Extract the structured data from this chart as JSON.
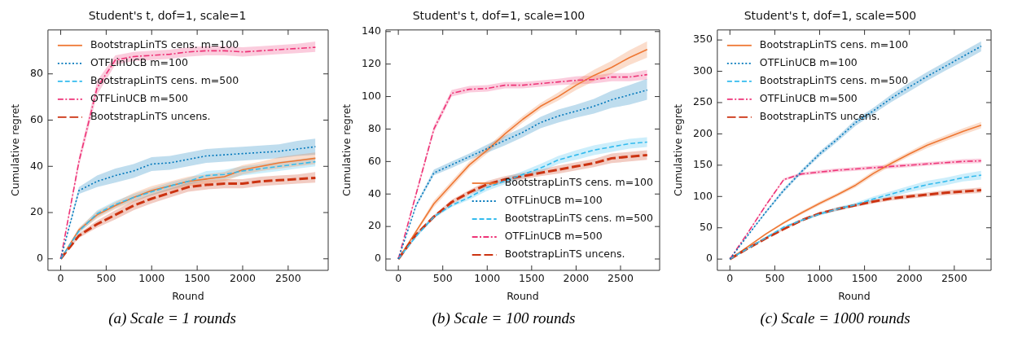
{
  "chart_data": [
    {
      "type": "line",
      "title": "Student's t, dof=1, scale=1",
      "xlabel": "Round",
      "ylabel": "Cumulative regret",
      "x": [
        0,
        200,
        400,
        600,
        800,
        1000,
        1200,
        1400,
        1600,
        1800,
        2000,
        2200,
        2400,
        2600,
        2800
      ],
      "xlim": [
        -140,
        2940
      ],
      "xticks": [
        0,
        500,
        1000,
        1500,
        2000,
        2500
      ],
      "ylim": [
        -5,
        99
      ],
      "yticks": [
        0,
        20,
        40,
        60,
        80
      ],
      "legend": "top left",
      "annotations": [
        "(a) Scale = 1 rounds"
      ],
      "series": [
        {
          "name": "BootstrapLinTS cens. m=100",
          "color": "#ee7733",
          "line_style": "solid",
          "values": [
            0,
            12.5,
            19,
            23,
            26.5,
            29.5,
            31.5,
            33.5,
            34.5,
            35.5,
            38.5,
            40,
            41.5,
            42.5,
            43.5
          ],
          "lower": [
            0,
            11.5,
            17.5,
            21.5,
            24.5,
            27.5,
            29.5,
            31.5,
            32.5,
            33.5,
            36.5,
            38,
            39,
            40,
            41
          ],
          "upper": [
            0,
            13.5,
            20.5,
            24.5,
            28.5,
            31.5,
            33.5,
            35.5,
            36.5,
            37.5,
            40.5,
            42,
            44,
            45,
            46
          ]
        },
        {
          "name": "OTFLinUCB m=100",
          "color": "#0077bb",
          "line_style": "dotted",
          "values": [
            0,
            29.5,
            33.5,
            36,
            38,
            41,
            41.5,
            43,
            44.5,
            45,
            45.5,
            46,
            46.5,
            47.5,
            48.5
          ],
          "lower": [
            0,
            28,
            31,
            33,
            35,
            38,
            38.5,
            40,
            41.5,
            42,
            42.5,
            43,
            43.5,
            44.5,
            45
          ],
          "upper": [
            0,
            31,
            36,
            39,
            41,
            44,
            44.5,
            46,
            47.5,
            48,
            48.5,
            49,
            49.5,
            51,
            52
          ]
        },
        {
          "name": "BootstrapLinTS cens. m=500",
          "color": "#33bbee",
          "line_style": "dashed",
          "values": [
            0,
            12,
            19.5,
            23.5,
            26.5,
            29,
            31.5,
            33.5,
            36,
            36.5,
            38,
            39,
            40,
            41,
            42
          ],
          "lower": [
            0,
            11,
            18,
            22,
            25,
            27.5,
            30,
            32,
            34,
            34.5,
            36,
            37,
            38,
            39,
            40
          ],
          "upper": [
            0,
            13,
            21,
            25,
            28,
            30.5,
            33,
            35,
            38,
            38.5,
            40,
            41,
            42,
            43,
            44
          ]
        },
        {
          "name": "OTFLinUCB m=500",
          "color": "#ee3377",
          "line_style": "dashdot",
          "values": [
            0,
            42,
            74,
            86,
            87.5,
            88,
            88.5,
            89.5,
            90,
            90,
            89.5,
            90,
            90.5,
            91,
            91.5
          ],
          "lower": [
            0,
            40,
            71,
            84,
            85.5,
            86,
            86.5,
            87.5,
            88,
            88,
            87.5,
            88,
            88.5,
            89,
            89.5
          ],
          "upper": [
            0,
            44,
            77,
            88,
            89.5,
            90,
            90.5,
            91.5,
            92,
            92,
            91.5,
            92,
            92.5,
            93,
            94
          ]
        },
        {
          "name": "BootstrapLinTS uncens.",
          "color": "#cc3311",
          "line_style": "longdash",
          "values": [
            0,
            10,
            15,
            19,
            23,
            26,
            28.5,
            31,
            32,
            32.5,
            32.5,
            33.5,
            34,
            34.5,
            35
          ],
          "lower": [
            0,
            9,
            13.5,
            17,
            21,
            24,
            26.5,
            29,
            30,
            30.5,
            30.5,
            31.5,
            32,
            32.5,
            33
          ],
          "upper": [
            0,
            11,
            16.5,
            21,
            25,
            28,
            30.5,
            33,
            34,
            34.5,
            34.5,
            35.5,
            36,
            36.5,
            37.5
          ]
        }
      ]
    },
    {
      "type": "line",
      "title": "Student's t, dof=1, scale=100",
      "xlabel": "Round",
      "ylabel": "Cumulative regret",
      "x": [
        0,
        200,
        400,
        600,
        800,
        1000,
        1200,
        1400,
        1600,
        1800,
        2000,
        2200,
        2400,
        2600,
        2800
      ],
      "xlim": [
        -140,
        2940
      ],
      "xticks": [
        0,
        500,
        1000,
        1500,
        2000,
        2500
      ],
      "ylim": [
        -7,
        141
      ],
      "yticks": [
        0,
        20,
        40,
        60,
        80,
        100,
        120,
        140
      ],
      "legend": "bottom right",
      "annotations": [
        "(b) Scale = 100 rounds"
      ],
      "series": [
        {
          "name": "BootstrapLinTS cens. m=100",
          "color": "#ee7733",
          "line_style": "solid",
          "values": [
            0,
            17,
            34,
            46,
            58,
            67,
            77,
            86,
            94,
            100,
            107,
            113,
            118,
            124,
            129
          ],
          "lower": [
            0,
            16,
            32,
            44,
            56,
            65,
            75,
            84,
            92,
            97.5,
            104,
            109.5,
            114,
            119.5,
            124
          ],
          "upper": [
            0,
            18,
            36,
            48,
            60,
            69,
            79,
            88,
            96,
            102.5,
            110,
            116.5,
            122,
            128.5,
            134
          ]
        },
        {
          "name": "OTFLinUCB m=100",
          "color": "#0077bb",
          "line_style": "dotted",
          "values": [
            0,
            33,
            53,
            58,
            63,
            68,
            73,
            78,
            84,
            88,
            91,
            94,
            98,
            101,
            104
          ],
          "lower": [
            0,
            32,
            51.5,
            56,
            61,
            65.5,
            70,
            75,
            80.5,
            84,
            87,
            89.5,
            93,
            95,
            98
          ],
          "upper": [
            0,
            34,
            55,
            60,
            65,
            70.5,
            76,
            81,
            87.5,
            92,
            95,
            98.5,
            103.5,
            107,
            111
          ]
        },
        {
          "name": "BootstrapLinTS cens. m=500",
          "color": "#33bbee",
          "line_style": "dashed",
          "values": [
            0,
            14,
            26,
            33,
            38,
            44,
            48,
            52,
            56,
            61,
            64,
            67,
            69,
            71,
            72
          ],
          "lower": [
            0,
            13,
            25,
            32,
            36.5,
            42,
            46,
            50,
            53.5,
            58.5,
            61,
            64,
            66,
            68,
            69
          ],
          "upper": [
            0,
            15,
            27,
            34,
            39.5,
            46,
            50,
            54,
            58.5,
            63.5,
            67,
            70,
            72,
            74,
            75
          ]
        },
        {
          "name": "OTFLinUCB m=500",
          "color": "#ee3377",
          "line_style": "dashdot",
          "values": [
            0,
            40,
            80,
            102,
            104.5,
            105,
            107,
            107,
            108,
            109,
            110,
            110.5,
            112,
            112,
            113.5
          ],
          "lower": [
            0,
            38.5,
            78,
            100,
            102.5,
            103,
            105,
            105,
            106,
            107,
            107.5,
            108,
            109.5,
            109.5,
            110.5
          ],
          "upper": [
            0,
            41.5,
            82,
            104,
            106.5,
            107,
            109,
            109,
            110,
            111,
            112.5,
            113,
            114.5,
            114.5,
            116.5
          ]
        },
        {
          "name": "BootstrapLinTS uncens.",
          "color": "#cc3311",
          "line_style": "longdash",
          "values": [
            0,
            15,
            26,
            35,
            41,
            46,
            49,
            51,
            53,
            55,
            57,
            59,
            62,
            63,
            64
          ],
          "lower": [
            0,
            14,
            25,
            33.5,
            39.5,
            44,
            47,
            49,
            51,
            52.5,
            54.5,
            56.5,
            59,
            60,
            61
          ],
          "upper": [
            0,
            16,
            27,
            36.5,
            42.5,
            48,
            51,
            53,
            55,
            57.5,
            59.5,
            61.5,
            65,
            66,
            67
          ]
        }
      ]
    },
    {
      "type": "line",
      "title": "Student's t, dof=1, scale=500",
      "xlabel": "Round",
      "ylabel": "Cumulative regret",
      "x": [
        0,
        200,
        400,
        600,
        800,
        1000,
        1200,
        1400,
        1600,
        1800,
        2000,
        2200,
        2400,
        2600,
        2800
      ],
      "xlim": [
        -140,
        2910
      ],
      "xticks": [
        0,
        500,
        1000,
        1500,
        2000,
        2500
      ],
      "ylim": [
        -18,
        366
      ],
      "yticks": [
        0,
        50,
        100,
        150,
        200,
        250,
        300,
        350
      ],
      "legend": "top left",
      "annotations": [
        "(c) Scale = 1000 rounds"
      ],
      "series": [
        {
          "name": "BootstrapLinTS cens. m=100",
          "color": "#ee7733",
          "line_style": "solid",
          "values": [
            0,
            20,
            40,
            58,
            74,
            89,
            103,
            118,
            137,
            153,
            168,
            182,
            193,
            204,
            214
          ],
          "lower": [
            0,
            19,
            38.5,
            56,
            71.5,
            86,
            100,
            114.5,
            133,
            149,
            164,
            177.5,
            188.5,
            199,
            209
          ],
          "upper": [
            0,
            21,
            41.5,
            60,
            76.5,
            92,
            106,
            121.5,
            141,
            157,
            172,
            186.5,
            197.5,
            209,
            219
          ]
        },
        {
          "name": "OTFLinUCB m=100",
          "color": "#0077bb",
          "line_style": "dotted",
          "values": [
            0,
            38,
            75,
            110,
            140,
            168,
            192,
            218,
            237,
            257,
            275,
            292,
            308,
            324,
            340
          ],
          "lower": [
            0,
            37,
            73,
            107,
            137,
            164,
            188,
            213,
            232,
            251,
            268,
            285,
            301,
            316,
            332
          ],
          "upper": [
            0,
            39,
            77,
            113,
            143,
            172,
            196,
            223,
            242,
            263,
            282,
            299,
            315,
            332,
            348
          ]
        },
        {
          "name": "BootstrapLinTS cens. m=500",
          "color": "#33bbee",
          "line_style": "dashed",
          "values": [
            0,
            17,
            34,
            51,
            62,
            72,
            80,
            87,
            96,
            104,
            112,
            119,
            124,
            130,
            134
          ],
          "lower": [
            0,
            16,
            32.5,
            49,
            60,
            69.5,
            77,
            84,
            92,
            99.5,
            107,
            113,
            118,
            124,
            127
          ],
          "upper": [
            0,
            18,
            35.5,
            53,
            64,
            74.5,
            83,
            90,
            100,
            108.5,
            117,
            125,
            130,
            136,
            141
          ]
        },
        {
          "name": "OTFLinUCB m=500",
          "color": "#ee3377",
          "line_style": "dashdot",
          "values": [
            0,
            42,
            86,
            127,
            136,
            139,
            142,
            144,
            146,
            148,
            150,
            152,
            154,
            156,
            157
          ],
          "lower": [
            0,
            41,
            84,
            125,
            133.5,
            136,
            139,
            141,
            143,
            145,
            147,
            149,
            151,
            152.5,
            153.5
          ],
          "upper": [
            0,
            43,
            88,
            129,
            138.5,
            142,
            145,
            147,
            149,
            151,
            153,
            155,
            157,
            159.5,
            160.5
          ]
        },
        {
          "name": "BootstrapLinTS uncens.",
          "color": "#cc3311",
          "line_style": "longdash",
          "values": [
            0,
            17,
            33,
            48,
            62,
            73,
            80,
            86,
            92,
            97,
            100,
            103,
            106,
            108,
            110
          ],
          "lower": [
            0,
            16,
            32,
            46.5,
            60,
            71,
            77.5,
            83.5,
            89,
            93.5,
            96.5,
            99.5,
            102,
            104,
            105.5
          ],
          "upper": [
            0,
            18,
            34,
            49.5,
            64,
            75,
            82.5,
            88.5,
            95,
            100.5,
            103.5,
            106.5,
            110,
            112,
            114.5
          ]
        }
      ]
    }
  ]
}
